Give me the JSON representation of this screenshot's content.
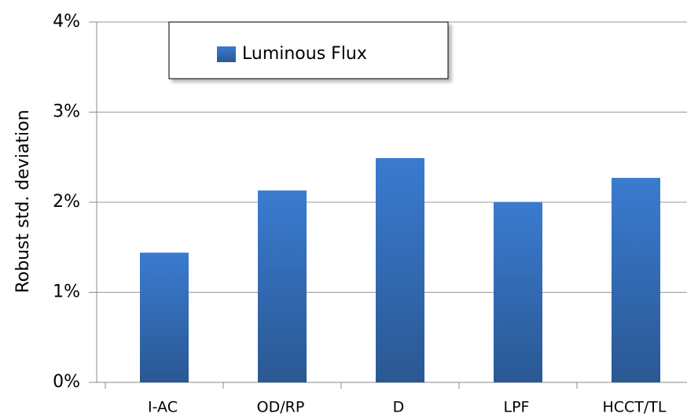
{
  "chart_data": {
    "type": "bar",
    "y_label": "Robust std. deviation",
    "categories": [
      "I-AC",
      "OD/RP",
      "D",
      "LPF",
      "HCCT/TL"
    ],
    "series": [
      {
        "name": "Luminous Flux",
        "color": "#3a7bd0",
        "values": [
          1.44,
          2.13,
          2.49,
          2.0,
          2.27
        ]
      }
    ],
    "ylim": [
      0,
      4
    ],
    "yticks": [
      {
        "value": 0,
        "label": "0%"
      },
      {
        "value": 1,
        "label": "1%"
      },
      {
        "value": 2,
        "label": "2%"
      },
      {
        "value": 3,
        "label": "3%"
      },
      {
        "value": 4,
        "label": "4%"
      }
    ],
    "grid": true
  }
}
